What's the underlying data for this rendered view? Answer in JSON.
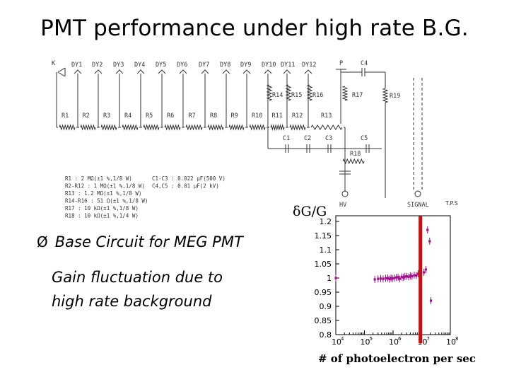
{
  "slide": {
    "title": "PMT performance under high rate B.G.",
    "bullet": "Base Circuit for MEG PMT",
    "sub_line1": "Gain fluctuation due to",
    "sub_line2": "high rate background"
  },
  "circuit": {
    "k_label": "K",
    "dynodes": [
      "DY1",
      "DY2",
      "DY3",
      "DY4",
      "DY5",
      "DY6",
      "DY7",
      "DY8",
      "DY9",
      "DY10",
      "DY11",
      "DY12"
    ],
    "p_label": "P",
    "c4_label": "C4",
    "resistors_top": [
      "R1",
      "R2",
      "R3",
      "R4",
      "R5",
      "R6",
      "R7",
      "R8",
      "R9",
      "R10",
      "R11",
      "R12",
      "R13"
    ],
    "r14_16": [
      "R14",
      "R15",
      "R16"
    ],
    "r17": "R17",
    "r19": "R19",
    "caps": [
      "C1",
      "C2",
      "C3"
    ],
    "c5": "C5",
    "r18": "R18",
    "hv_label": "HV",
    "signal_label": "SIGNAL",
    "spec_left": [
      "R1 : 2 MΩ(±1 %,1/8 W)",
      "R2-R12 : 1 MΩ(±1 %,1/8 W)",
      "R13 : 1.2 MΩ(±1 %,1/8 W)",
      "R14-R16 : 51 Ω(±1 %,1/8 W)",
      "R17 : 10 kΩ(±1 %,1/8 W)",
      "R18 : 10 kΩ(±1 %,1/4 W)"
    ],
    "spec_right": [
      "C1-C3 : 0.022 μF(500 V)",
      "C4,C5 : 0.01 μF(2 kV)"
    ]
  },
  "chart_data": {
    "type": "scatter",
    "ylabel": "δG/G",
    "xlabel": "# of photoelectron per sec",
    "x_scale": "log",
    "xlim": [
      10000,
      100000000
    ],
    "ylim": [
      0.8,
      1.22
    ],
    "yticks": [
      "0.8",
      "0.85",
      "0.9",
      "0.95",
      "1",
      "1.05",
      "1.1",
      "1.15",
      "1.2"
    ],
    "xtick_exponents": [
      "4",
      "5",
      "6",
      "7",
      "8"
    ],
    "corner_label": "T.P.S",
    "marker_color": "#a0108c",
    "threshold_x": 9000000,
    "threshold_color": "#c81010",
    "points": [
      [
        10000,
        1.0
      ],
      [
        230000,
        0.995
      ],
      [
        300000,
        0.997
      ],
      [
        370000,
        0.998
      ],
      [
        450000,
        0.997
      ],
      [
        550000,
        0.999
      ],
      [
        650000,
        1.0
      ],
      [
        750000,
        0.996
      ],
      [
        850000,
        1.0
      ],
      [
        950000,
        0.998
      ],
      [
        1100000,
        1.0
      ],
      [
        1300000,
        1.002
      ],
      [
        1500000,
        1.003
      ],
      [
        1700000,
        0.997
      ],
      [
        2000000,
        1.004
      ],
      [
        2300000,
        1.002
      ],
      [
        2600000,
        1.005
      ],
      [
        3000000,
        1.006
      ],
      [
        3500000,
        1.004
      ],
      [
        4000000,
        1.008
      ],
      [
        4600000,
        1.006
      ],
      [
        5500000,
        1.01
      ],
      [
        6500000,
        1.009
      ],
      [
        7500000,
        1.015
      ],
      [
        12000000,
        1.02
      ],
      [
        14000000,
        1.03
      ],
      [
        16000000,
        1.17
      ],
      [
        19000000,
        1.13
      ],
      [
        21000000,
        0.92
      ]
    ]
  }
}
